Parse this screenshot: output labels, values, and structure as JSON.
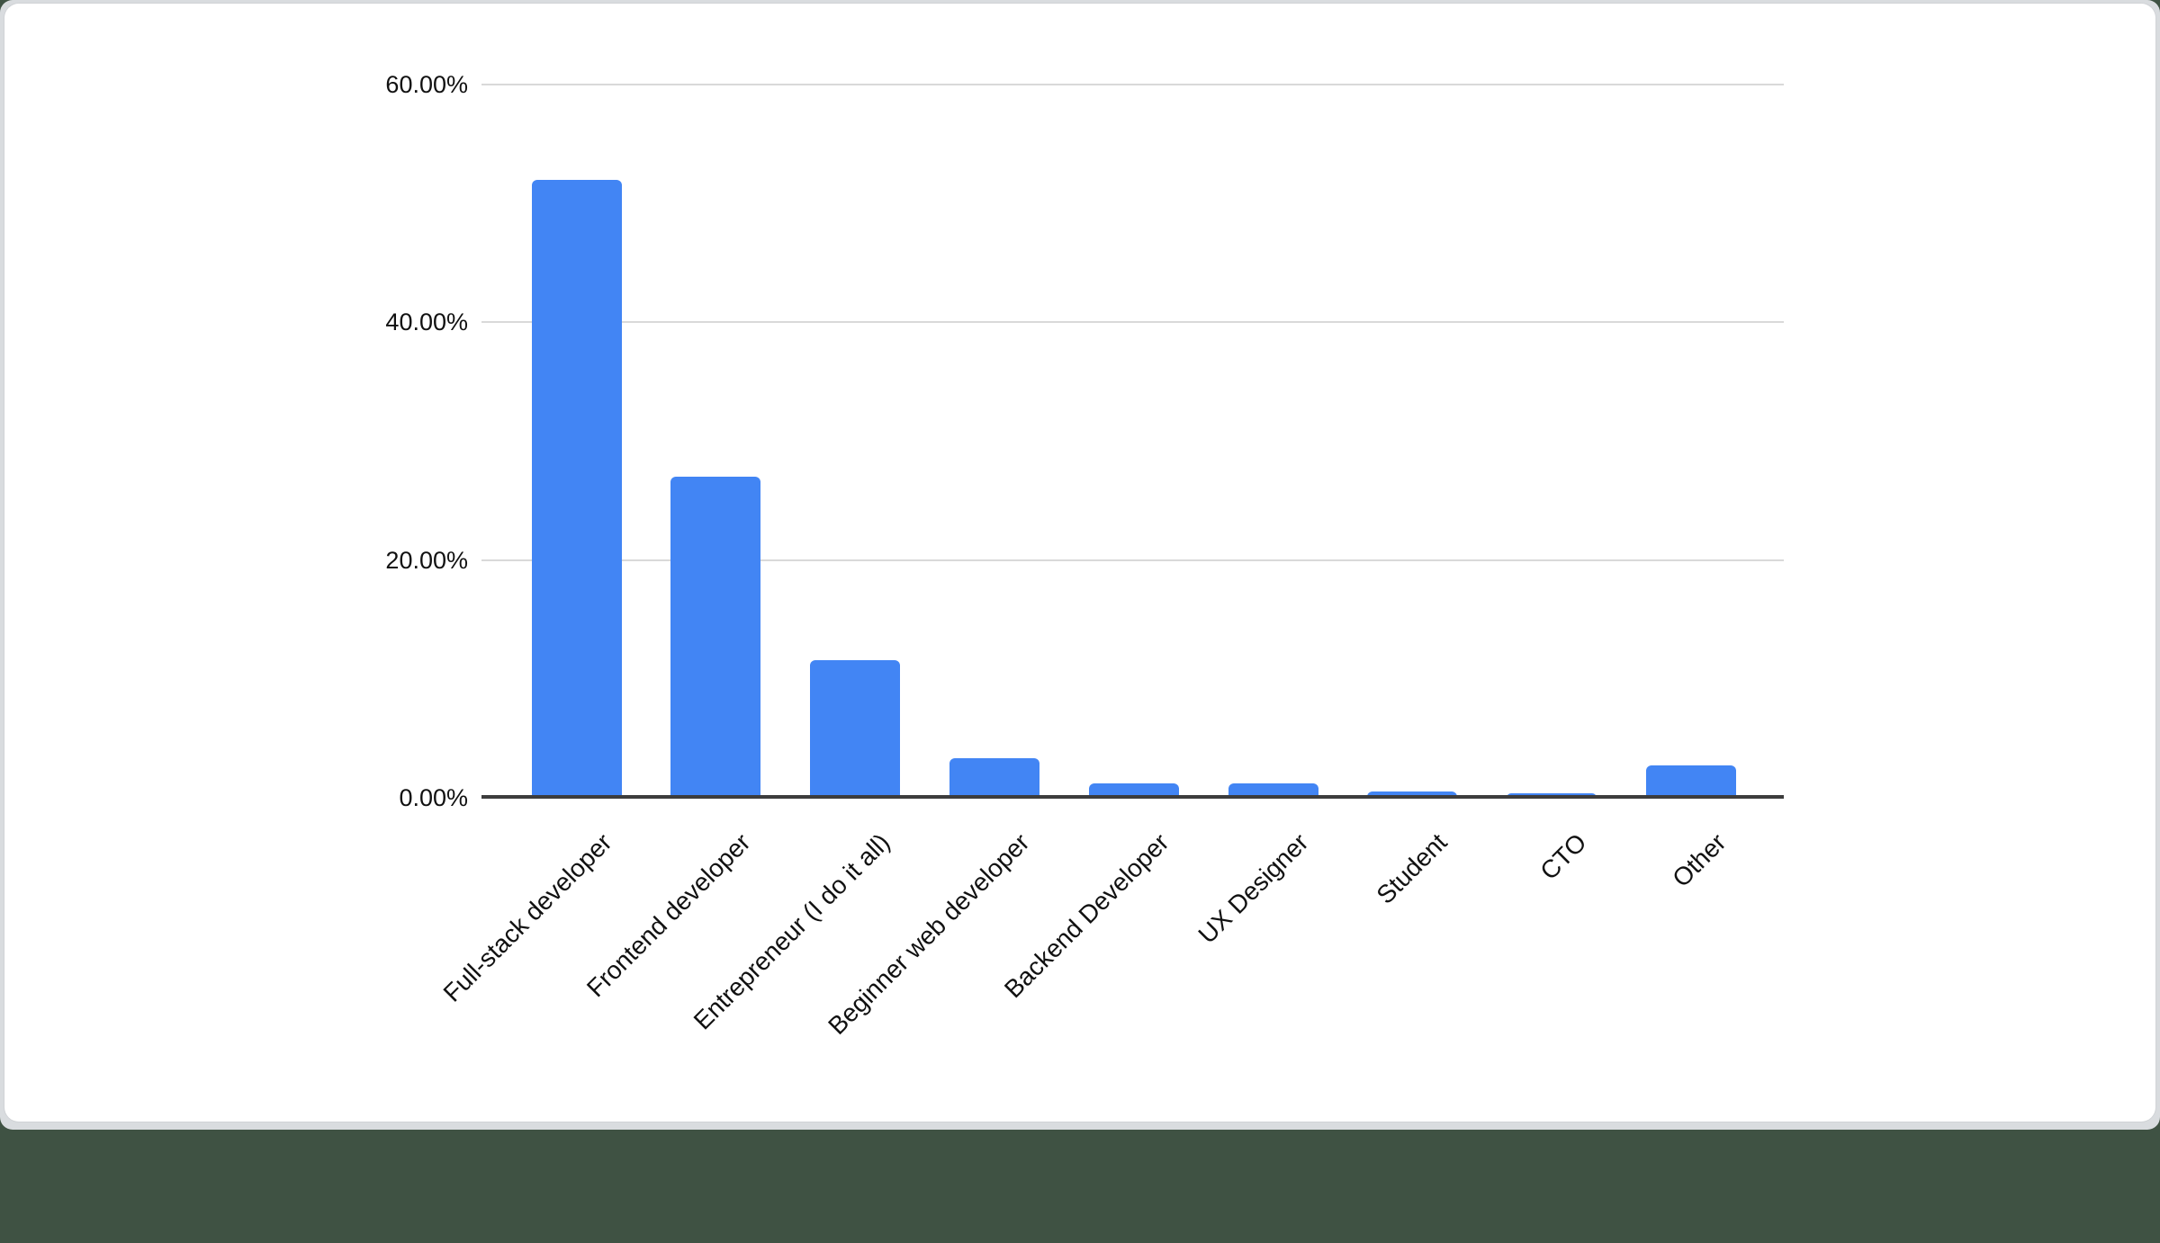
{
  "chart_data": {
    "type": "bar",
    "categories": [
      "Full-stack developer",
      "Frontend developer",
      "Entrepreneur (I do it all)",
      "Beginner web developer",
      "Backend Developer",
      "UX Designer",
      "Student",
      "CTO",
      "Other"
    ],
    "values": [
      52.0,
      27.0,
      11.6,
      3.3,
      1.2,
      1.2,
      0.5,
      0.35,
      2.7
    ],
    "value_unit": "percent",
    "ylim": [
      0,
      60
    ],
    "yticks": [
      0,
      20,
      40,
      60
    ],
    "ytick_labels": [
      "0.00%",
      "20.00%",
      "40.00%",
      "60.00%"
    ],
    "xtick_rotation_deg": -45,
    "grid": true,
    "legend_position": "none",
    "title": "",
    "xlabel": "",
    "ylabel": ""
  },
  "colors": {
    "bar": "#4285f4",
    "gridline": "#d9d9d9",
    "axis_line": "#3c3c3c",
    "label_text": "#111111",
    "card_background": "#ffffff",
    "page_background": "#d9dcdf",
    "corner_accent": "#3f5243"
  }
}
